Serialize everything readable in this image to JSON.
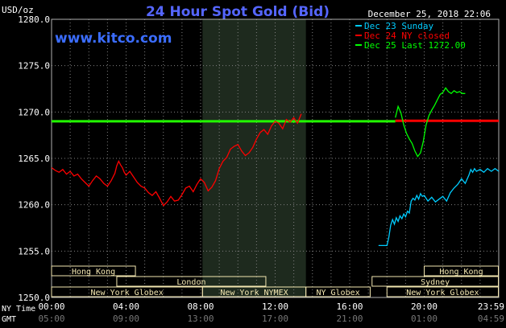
{
  "chart_data": {
    "type": "line",
    "title": "24 Hour Spot Gold (Bid)",
    "website": "www.kitco.com",
    "date_label": "December 25, 2018 22:06",
    "unit_label": "USD/oz",
    "ylim": [
      1250,
      1280
    ],
    "yticks": [
      1250.0,
      1255.0,
      1260.0,
      1265.0,
      1270.0,
      1275.0,
      1280.0
    ],
    "ytick_labels": [
      "1250.0",
      "1255.0",
      "1260.0",
      "1265.0",
      "1270.0",
      "1275.0",
      "1280.0"
    ],
    "xlim": [
      0,
      24
    ],
    "x_row_labels": {
      "ny": "NY Time",
      "gmt": "GMT"
    },
    "x_ticks_ny": [
      {
        "x": 0,
        "label": "00:00"
      },
      {
        "x": 4,
        "label": "04:00"
      },
      {
        "x": 8,
        "label": "08:00"
      },
      {
        "x": 12,
        "label": "12:00"
      },
      {
        "x": 16,
        "label": "16:00"
      },
      {
        "x": 20,
        "label": "20:00"
      },
      {
        "x": 23.98,
        "label": "23:59"
      }
    ],
    "x_ticks_gmt": [
      {
        "x": 0,
        "label": "05:00"
      },
      {
        "x": 4,
        "label": "09:00"
      },
      {
        "x": 8,
        "label": "13:00"
      },
      {
        "x": 12,
        "label": "17:00"
      },
      {
        "x": 16,
        "label": "21:00"
      },
      {
        "x": 20,
        "label": "01:00"
      },
      {
        "x": 23.98,
        "label": "04:59"
      }
    ],
    "legend": [
      {
        "label": "Dec 23 Sunday",
        "color": "#00ccff"
      },
      {
        "label": "Dec 24 NY closed",
        "color": "#ff0000"
      },
      {
        "label": "Dec 25 Last 1272.00",
        "color": "#00ff00"
      }
    ],
    "highlight_band": {
      "from": 8.1,
      "to": 13.65
    },
    "reference_lines": [
      {
        "y": 1269.0,
        "from": 0,
        "to": 18.45,
        "color": "#22ff00"
      },
      {
        "y": 1269.05,
        "from": 18.45,
        "to": 24,
        "color": "#ff0000"
      }
    ],
    "markets": [
      {
        "label": "Hong Kong",
        "from": 0,
        "to": 4.5,
        "row": 1
      },
      {
        "label": "London",
        "from": 3.5,
        "to": 11.5,
        "row": 2
      },
      {
        "label": "New York Globex",
        "from": 0,
        "to": 8.1,
        "row": 3
      },
      {
        "label": "New York NYMEX",
        "from": 8.1,
        "to": 13.65,
        "row": 3
      },
      {
        "label": "NY Globex",
        "from": 13.65,
        "to": 17.1,
        "row": 3
      },
      {
        "label": "Hong Kong",
        "from": 20.0,
        "to": 24,
        "row": 1
      },
      {
        "label": "Sydney",
        "from": 17.2,
        "to": 24,
        "row": 2
      },
      {
        "label": "New York Globex",
        "from": 18.0,
        "to": 24,
        "row": 3
      }
    ],
    "series": [
      {
        "name": "Dec 23 Sunday",
        "color": "#00ccff",
        "x": [
          17.55,
          18.0,
          18.1,
          18.2,
          18.3,
          18.4,
          18.5,
          18.6,
          18.7,
          18.8,
          18.9,
          19.0,
          19.1,
          19.2,
          19.3,
          19.4,
          19.5,
          19.6,
          19.7,
          19.8,
          19.9,
          20.0,
          20.2,
          20.4,
          20.6,
          20.8,
          21.0,
          21.2,
          21.4,
          21.6,
          21.8,
          22.0,
          22.2,
          22.4,
          22.5,
          22.6,
          22.7,
          22.8,
          23.0,
          23.2,
          23.4,
          23.6,
          23.8,
          24.0
        ],
        "y": [
          1255.6,
          1255.6,
          1256.5,
          1257.8,
          1258.4,
          1257.9,
          1258.6,
          1258.2,
          1258.8,
          1258.5,
          1259.0,
          1258.7,
          1259.3,
          1259.1,
          1260.4,
          1260.7,
          1260.5,
          1261.0,
          1260.6,
          1261.2,
          1260.9,
          1261.0,
          1260.4,
          1260.8,
          1260.3,
          1260.6,
          1260.9,
          1260.4,
          1261.3,
          1261.8,
          1262.2,
          1262.8,
          1262.3,
          1263.2,
          1263.8,
          1263.5,
          1263.9,
          1263.6,
          1263.8,
          1263.5,
          1263.9,
          1263.6,
          1263.9,
          1263.6
        ]
      },
      {
        "name": "Dec 24 NY closed",
        "color": "#ff0000",
        "x": [
          0.0,
          0.2,
          0.4,
          0.6,
          0.8,
          1.0,
          1.2,
          1.4,
          1.6,
          1.8,
          2.0,
          2.2,
          2.4,
          2.6,
          2.8,
          3.0,
          3.2,
          3.4,
          3.5,
          3.6,
          3.7,
          3.8,
          3.9,
          4.0,
          4.2,
          4.4,
          4.6,
          4.8,
          5.0,
          5.2,
          5.4,
          5.6,
          5.8,
          6.0,
          6.2,
          6.4,
          6.6,
          6.8,
          7.0,
          7.2,
          7.4,
          7.6,
          7.8,
          8.0,
          8.2,
          8.4,
          8.6,
          8.8,
          9.0,
          9.2,
          9.4,
          9.6,
          9.8,
          10.0,
          10.2,
          10.4,
          10.6,
          10.8,
          11.0,
          11.2,
          11.4,
          11.6,
          11.8,
          12.0,
          12.2,
          12.4,
          12.6,
          12.8,
          13.0,
          13.2,
          13.4
        ],
        "y": [
          1264.0,
          1263.7,
          1263.5,
          1263.8,
          1263.3,
          1263.6,
          1263.1,
          1263.3,
          1262.8,
          1262.4,
          1262.0,
          1262.6,
          1263.1,
          1262.8,
          1262.3,
          1262.0,
          1262.6,
          1263.4,
          1264.2,
          1264.7,
          1264.3,
          1264.0,
          1263.5,
          1263.2,
          1263.6,
          1263.0,
          1262.4,
          1262.0,
          1261.8,
          1261.3,
          1261.0,
          1261.4,
          1260.7,
          1259.9,
          1260.3,
          1260.9,
          1260.4,
          1260.5,
          1261.1,
          1261.8,
          1262.0,
          1261.4,
          1262.2,
          1262.8,
          1262.4,
          1261.5,
          1261.9,
          1262.6,
          1263.9,
          1264.7,
          1265.1,
          1266.0,
          1266.3,
          1266.5,
          1265.8,
          1265.3,
          1265.6,
          1266.2,
          1267.1,
          1267.8,
          1268.1,
          1267.6,
          1268.5,
          1269.0,
          1268.8,
          1268.2,
          1269.2,
          1268.9,
          1269.4,
          1268.8,
          1269.8
        ]
      },
      {
        "name": "Dec 25 Last 1272.00",
        "color": "#00ff00",
        "x": [
          18.45,
          18.6,
          18.75,
          18.9,
          19.05,
          19.2,
          19.35,
          19.5,
          19.65,
          19.8,
          19.95,
          20.1,
          20.25,
          20.4,
          20.55,
          20.7,
          20.85,
          21.0,
          21.15,
          21.3,
          21.45,
          21.6,
          21.75,
          21.9,
          22.05,
          22.2
        ],
        "y": [
          1269.4,
          1270.6,
          1269.9,
          1268.6,
          1267.7,
          1267.1,
          1266.6,
          1265.8,
          1265.2,
          1265.6,
          1266.8,
          1268.6,
          1269.6,
          1270.2,
          1270.7,
          1271.3,
          1271.9,
          1272.1,
          1272.6,
          1272.2,
          1272.0,
          1272.3,
          1272.1,
          1272.2,
          1272.0,
          1272.0
        ]
      }
    ]
  }
}
